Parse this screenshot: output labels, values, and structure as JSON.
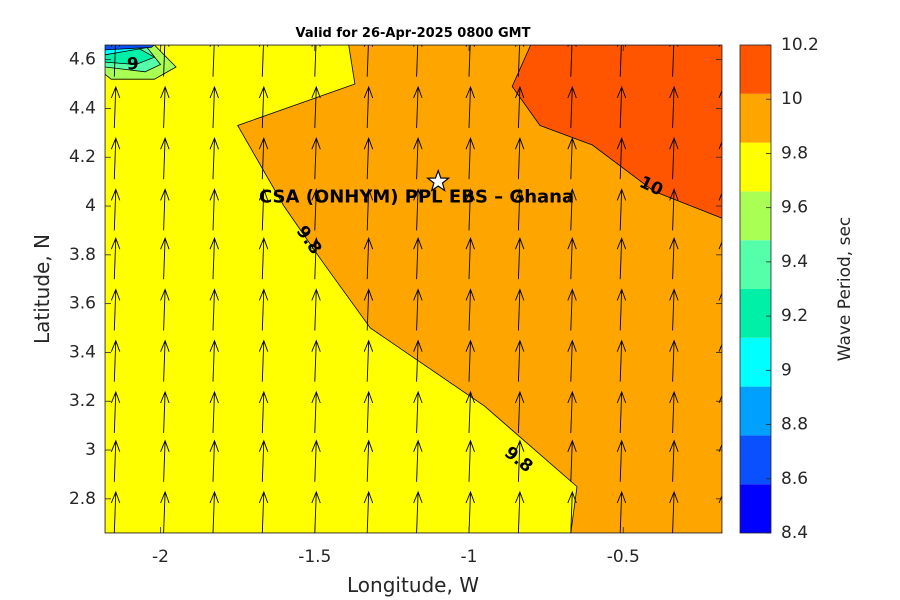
{
  "chart_data": {
    "type": "contour",
    "title": "Valid for 26-Apr-2025 0800 GMT",
    "xlabel": "Longitude, W",
    "ylabel": "Latitude, N",
    "xlim": [
      -2.18,
      -0.18
    ],
    "ylim": [
      2.66,
      4.66
    ],
    "xticks": [
      -2,
      -1.5,
      -1,
      -0.5
    ],
    "yticks": [
      2.8,
      3,
      3.2,
      3.4,
      3.6,
      3.8,
      4,
      4.2,
      4.4,
      4.6
    ],
    "colorbar": {
      "label": "Wave Period, sec",
      "min": 8.4,
      "max": 10.2,
      "ticks": [
        8.4,
        8.6,
        8.8,
        9,
        9.2,
        9.4,
        9.6,
        9.8,
        10,
        10.2
      ],
      "colors": [
        "#0000ff",
        "#0a50ff",
        "#00a0ff",
        "#00ffff",
        "#00f0a8",
        "#55ffaa",
        "#aaff55",
        "#ffff00",
        "#ffa500",
        "#ff5500"
      ]
    },
    "regions": [
      {
        "level": "9.6-9.8",
        "color": "#ffff00",
        "points": [
          [
            -2.18,
            2.66
          ],
          [
            -2.18,
            4.66
          ],
          [
            -0.18,
            4.66
          ],
          [
            -0.18,
            2.66
          ]
        ]
      },
      {
        "level": "9.8-10",
        "color": "#ffa500",
        "points": [
          [
            -1.39,
            4.66
          ],
          [
            -1.37,
            4.5
          ],
          [
            -1.75,
            4.33
          ],
          [
            -1.6,
            4.0
          ],
          [
            -1.48,
            3.78
          ],
          [
            -1.32,
            3.5
          ],
          [
            -0.95,
            3.18
          ],
          [
            -0.65,
            2.85
          ],
          [
            -0.67,
            2.66
          ],
          [
            -0.18,
            2.66
          ],
          [
            -0.18,
            4.66
          ]
        ]
      },
      {
        "level": "10-10.2",
        "color": "#ff5500",
        "points": [
          [
            -0.8,
            4.66
          ],
          [
            -0.86,
            4.49
          ],
          [
            -0.77,
            4.33
          ],
          [
            -0.6,
            4.25
          ],
          [
            -0.4,
            4.06
          ],
          [
            -0.18,
            3.95
          ],
          [
            -0.18,
            4.66
          ]
        ]
      },
      {
        "level": "9.4-9.6",
        "color": "#aaff55",
        "points": [
          [
            -2.02,
            4.66
          ],
          [
            -1.95,
            4.57
          ],
          [
            -2.02,
            4.52
          ],
          [
            -2.16,
            4.52
          ],
          [
            -2.18,
            4.54
          ],
          [
            -2.18,
            4.66
          ]
        ]
      },
      {
        "level": "9.2-9.4",
        "color": "#55ffaa",
        "points": [
          [
            -2.05,
            4.66
          ],
          [
            -2.0,
            4.58
          ],
          [
            -2.05,
            4.55
          ],
          [
            -2.18,
            4.57
          ],
          [
            -2.18,
            4.66
          ]
        ]
      },
      {
        "level": "9-9.2",
        "color": "#00f0a8",
        "points": [
          [
            -2.09,
            4.66
          ],
          [
            -2.02,
            4.61
          ],
          [
            -2.08,
            4.58
          ],
          [
            -2.18,
            4.59
          ],
          [
            -2.18,
            4.66
          ]
        ]
      },
      {
        "level": "8.8-9",
        "color": "#00ffff",
        "points": [
          [
            -2.14,
            4.66
          ],
          [
            -2.04,
            4.65
          ],
          [
            -2.18,
            4.62
          ],
          [
            -2.18,
            4.66
          ]
        ]
      },
      {
        "level": "8.6-8.8",
        "color": "#0a50ff",
        "points": [
          [
            -2.18,
            4.66
          ],
          [
            -2.02,
            4.66
          ],
          [
            -2.03,
            4.65
          ],
          [
            -2.18,
            4.64
          ]
        ]
      }
    ],
    "contour_labels": [
      {
        "text": "9",
        "x": -2.09,
        "y": 4.58,
        "angle": 0
      },
      {
        "text": "9.8",
        "x": -1.52,
        "y": 3.86,
        "angle": 55
      },
      {
        "text": "9.8",
        "x": -0.84,
        "y": 2.96,
        "angle": 38
      },
      {
        "text": "10",
        "x": -0.41,
        "y": 4.08,
        "angle": 25
      }
    ],
    "site": {
      "label": "CSA (ONHYM) PPL EBS  – Ghana",
      "x": -1.1,
      "y": 4.1
    },
    "arrow_columns": [
      -2.15,
      -1.99,
      -1.83,
      -1.67,
      -1.5,
      -1.33,
      -1.17,
      -1.0,
      -0.84,
      -0.67,
      -0.51,
      -0.34,
      -0.18
    ],
    "arrow_rows": [
      2.66,
      2.87,
      3.07,
      3.28,
      3.49,
      3.7,
      3.9,
      4.11,
      4.32,
      4.53
    ],
    "arrow_direction": "north"
  }
}
